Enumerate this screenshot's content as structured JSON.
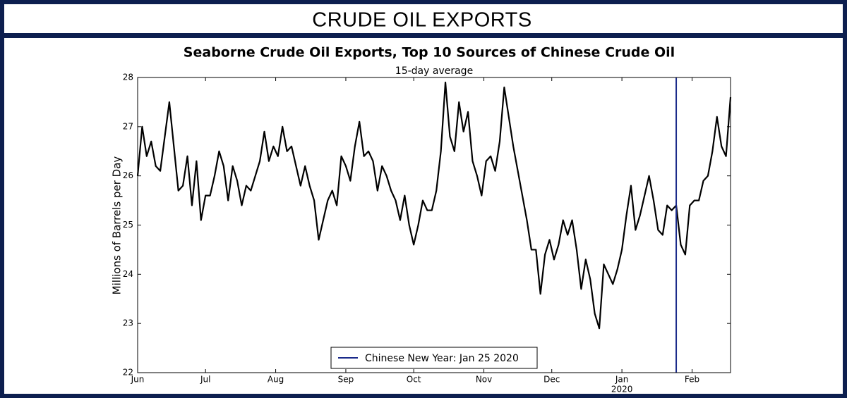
{
  "header": {
    "title": "CRUDE OIL EXPORTS"
  },
  "chart_data": {
    "type": "line",
    "title": "Seaborne Crude Oil Exports, Top 10 Sources of Chinese Crude Oil",
    "subtitle": "15-day average",
    "y_label": "Millions of Barrels per Day",
    "color": "#000000",
    "x": [
      0,
      2,
      4,
      6,
      8,
      10,
      12,
      14,
      16,
      18,
      20,
      22,
      24,
      26,
      28,
      30,
      32,
      34,
      36,
      38,
      40,
      42,
      44,
      46,
      48,
      50,
      52,
      54,
      56,
      58,
      60,
      62,
      64,
      66,
      68,
      70,
      72,
      74,
      76,
      78,
      80,
      82,
      84,
      86,
      88,
      90,
      92,
      94,
      96,
      98,
      100,
      102,
      104,
      106,
      108,
      110,
      112,
      114,
      116,
      118,
      120,
      122,
      124,
      126,
      128,
      130,
      132,
      134,
      136,
      138,
      140,
      142,
      144,
      146,
      148,
      150,
      152,
      154,
      156,
      158,
      160,
      162,
      164,
      166,
      168,
      170,
      172,
      174,
      176,
      178,
      180,
      182,
      184,
      186,
      188,
      190,
      192,
      194,
      196,
      198,
      200,
      202,
      204,
      206,
      208,
      210,
      212,
      214,
      216,
      218,
      220,
      222,
      224,
      226,
      228,
      230,
      232,
      234,
      236,
      238,
      240,
      242,
      244,
      246,
      248,
      250,
      252,
      254,
      256,
      258,
      260,
      262
    ],
    "values": [
      26.0,
      27.0,
      26.4,
      26.7,
      26.2,
      26.1,
      26.8,
      27.5,
      26.6,
      25.7,
      25.8,
      26.4,
      25.4,
      26.3,
      25.1,
      25.6,
      25.6,
      26.0,
      26.5,
      26.2,
      25.5,
      26.2,
      25.9,
      25.4,
      25.8,
      25.7,
      26.0,
      26.3,
      26.9,
      26.3,
      26.6,
      26.4,
      27.0,
      26.5,
      26.6,
      26.2,
      25.8,
      26.2,
      25.8,
      25.5,
      24.7,
      25.1,
      25.5,
      25.7,
      25.4,
      26.4,
      26.2,
      25.9,
      26.6,
      27.1,
      26.4,
      26.5,
      26.3,
      25.7,
      26.2,
      26.0,
      25.7,
      25.5,
      25.1,
      25.6,
      25.0,
      24.6,
      25.0,
      25.5,
      25.3,
      25.3,
      25.7,
      26.5,
      27.9,
      26.8,
      26.5,
      27.5,
      26.9,
      27.3,
      26.3,
      26.0,
      25.6,
      26.3,
      26.4,
      26.1,
      26.7,
      27.8,
      27.2,
      26.6,
      26.1,
      25.6,
      25.1,
      24.5,
      24.5,
      23.6,
      24.4,
      24.7,
      24.3,
      24.6,
      25.1,
      24.8,
      25.1,
      24.5,
      23.7,
      24.3,
      23.9,
      23.2,
      22.9,
      24.2,
      24.0,
      23.8,
      24.1,
      24.5,
      25.2,
      25.8,
      24.9,
      25.2,
      25.6,
      26.0,
      25.5,
      24.9,
      24.8,
      25.4,
      25.3,
      25.4,
      24.6,
      24.4,
      25.4,
      25.5,
      25.5,
      25.9,
      26.0,
      26.5,
      27.2,
      26.6,
      26.4,
      27.6
    ],
    "xlim": [
      0,
      262
    ],
    "xticks": [
      {
        "value": 0,
        "label": "Jun"
      },
      {
        "value": 30,
        "label": "Jul"
      },
      {
        "value": 61,
        "label": "Aug"
      },
      {
        "value": 92,
        "label": "Sep"
      },
      {
        "value": 122,
        "label": "Oct"
      },
      {
        "value": 153,
        "label": "Nov"
      },
      {
        "value": 183,
        "label": "Dec"
      },
      {
        "value": 214,
        "label": "Jan"
      },
      {
        "value": 245,
        "label": "Feb"
      }
    ],
    "annotations": [
      {
        "x": 214,
        "label": "2020"
      }
    ],
    "ylim": [
      22,
      28
    ],
    "yticks": [
      22,
      23,
      24,
      25,
      26,
      27,
      28
    ],
    "vline": {
      "x": 238,
      "label": "Chinese New Year: Jan 25 2020",
      "color": "#1a2a8a"
    },
    "legend": "lower center"
  }
}
